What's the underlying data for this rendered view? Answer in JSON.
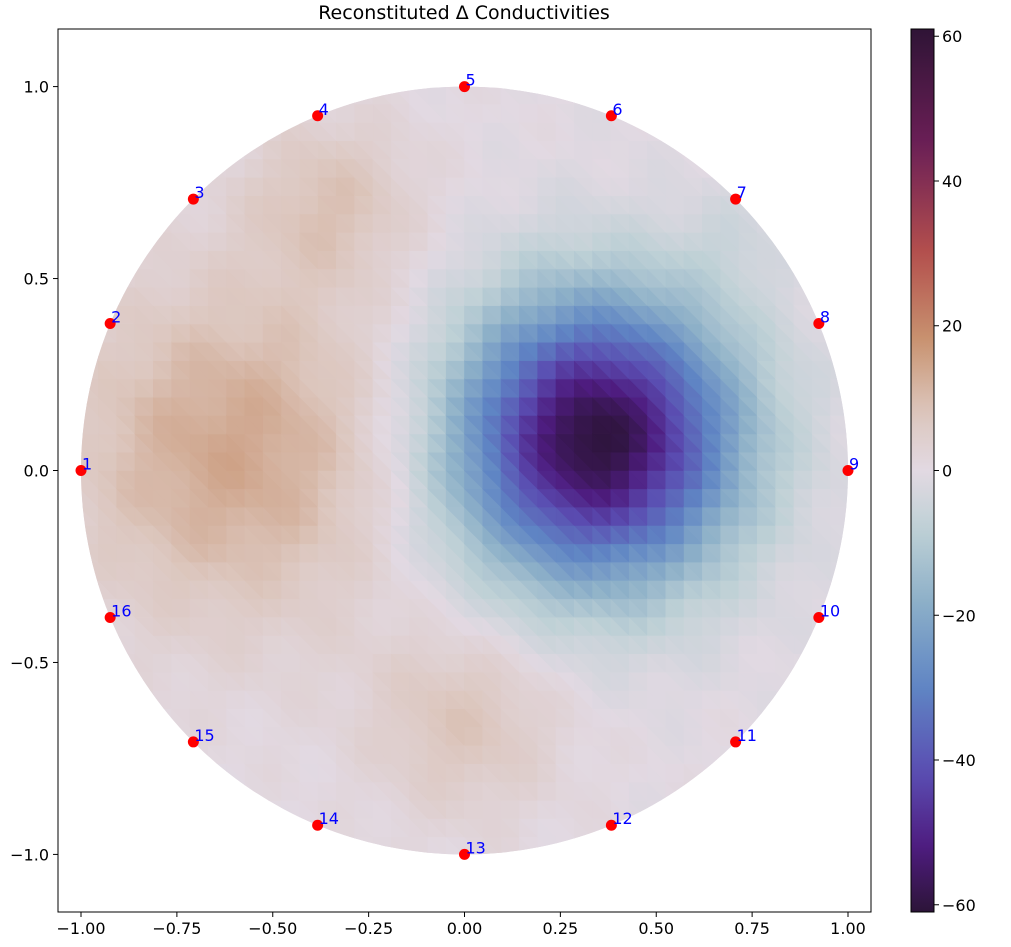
{
  "chart_data": {
    "type": "heatmap",
    "title": "Reconstituted Δ Conductivities",
    "xlabel": "",
    "ylabel": "",
    "xlim": [
      -1.06,
      1.06
    ],
    "ylim": [
      -1.15,
      1.15
    ],
    "xticks": [
      {
        "value": -1.0,
        "label": "−1.00"
      },
      {
        "value": -0.75,
        "label": "−0.75"
      },
      {
        "value": -0.5,
        "label": "−0.50"
      },
      {
        "value": -0.25,
        "label": "−0.25"
      },
      {
        "value": 0.0,
        "label": "0.00"
      },
      {
        "value": 0.25,
        "label": "0.25"
      },
      {
        "value": 0.5,
        "label": "0.50"
      },
      {
        "value": 0.75,
        "label": "0.75"
      },
      {
        "value": 1.0,
        "label": "1.00"
      }
    ],
    "yticks": [
      {
        "value": 1.0,
        "label": "1.0"
      },
      {
        "value": 0.5,
        "label": "0.5"
      },
      {
        "value": 0.0,
        "label": "0.0"
      },
      {
        "value": -0.5,
        "label": "−0.5"
      },
      {
        "value": -1.0,
        "label": "−1.0"
      }
    ],
    "grid": false,
    "domain": "unit disk",
    "colormap": "twilight_shifted",
    "colorbar": {
      "range": [
        -61,
        61
      ],
      "ticks": [
        {
          "value": 60,
          "label": "60"
        },
        {
          "value": 40,
          "label": "40"
        },
        {
          "value": 20,
          "label": "20"
        },
        {
          "value": 0,
          "label": "0"
        },
        {
          "value": -20,
          "label": "−20"
        },
        {
          "value": -40,
          "label": "−40"
        },
        {
          "value": -60,
          "label": "−60"
        }
      ],
      "stops": [
        {
          "value": 61,
          "color": "#2f1436"
        },
        {
          "value": 45,
          "color": "#6b1f56"
        },
        {
          "value": 30,
          "color": "#b4504d"
        },
        {
          "value": 18,
          "color": "#c89370"
        },
        {
          "value": 8,
          "color": "#dcc6bd"
        },
        {
          "value": 0,
          "color": "#e2d9e2"
        },
        {
          "value": -8,
          "color": "#bfd1d6"
        },
        {
          "value": -18,
          "color": "#8db0c8"
        },
        {
          "value": -30,
          "color": "#5f85c4"
        },
        {
          "value": -42,
          "color": "#5a4cb1"
        },
        {
          "value": -52,
          "color": "#4e1c7f"
        },
        {
          "value": -61,
          "color": "#2c1438"
        }
      ]
    },
    "field_blobs": [
      {
        "x": 0.345,
        "y": 0.08,
        "value": -61,
        "radius": 0.4
      },
      {
        "x": 0.7,
        "y": 0.6,
        "value": -3,
        "radius": 0.15
      },
      {
        "x": -0.6,
        "y": 0.05,
        "value": 14,
        "radius": 0.5
      },
      {
        "x": -0.35,
        "y": 0.7,
        "value": 8,
        "radius": 0.25
      },
      {
        "x": 0.0,
        "y": -0.65,
        "value": 8,
        "radius": 0.28
      }
    ],
    "electrodes": [
      {
        "label": "1",
        "x": -1.0,
        "y": 0.0
      },
      {
        "label": "2",
        "x": -0.924,
        "y": 0.383
      },
      {
        "label": "3",
        "x": -0.707,
        "y": 0.707
      },
      {
        "label": "4",
        "x": -0.383,
        "y": 0.924
      },
      {
        "label": "5",
        "x": 0.0,
        "y": 1.0
      },
      {
        "label": "6",
        "x": 0.383,
        "y": 0.924
      },
      {
        "label": "7",
        "x": 0.707,
        "y": 0.707
      },
      {
        "label": "8",
        "x": 0.924,
        "y": 0.383
      },
      {
        "label": "9",
        "x": 1.0,
        "y": 0.0
      },
      {
        "label": "10",
        "x": 0.924,
        "y": -0.383
      },
      {
        "label": "11",
        "x": 0.707,
        "y": -0.707
      },
      {
        "label": "12",
        "x": 0.383,
        "y": -0.924
      },
      {
        "label": "13",
        "x": 0.0,
        "y": -1.0
      },
      {
        "label": "14",
        "x": -0.383,
        "y": -0.924
      },
      {
        "label": "15",
        "x": -0.707,
        "y": -0.707
      },
      {
        "label": "16",
        "x": -0.924,
        "y": -0.383
      }
    ],
    "colors": {
      "electrode_marker": "#ff0000",
      "electrode_label": "#0000ff",
      "axis": "#000000"
    }
  }
}
